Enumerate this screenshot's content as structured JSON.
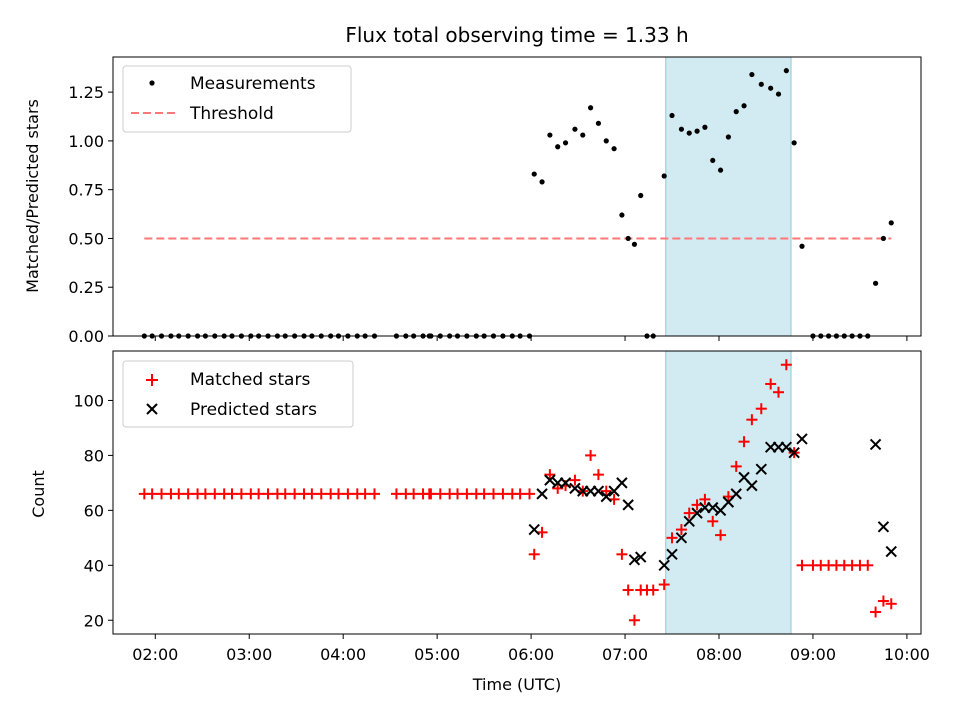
{
  "figure": {
    "title": "Flux total observing time = 1.33 h"
  },
  "chart_data": [
    {
      "type": "scatter",
      "panel": "top",
      "ylabel": "Matched/Predicted stars",
      "ylim": [
        0,
        1.43
      ],
      "yticks": [
        0.0,
        0.25,
        0.5,
        0.75,
        1.0,
        1.25
      ],
      "ytick_labels": [
        "0.00",
        "0.25",
        "0.50",
        "0.75",
        "1.00",
        "1.25"
      ],
      "legend_position": "upper-left",
      "series": [
        {
          "name": "Measurements",
          "marker": "dot",
          "color": "#000000",
          "points": [
            [
              "01:53",
              0
            ],
            [
              "01:58",
              0
            ],
            [
              "02:04",
              0
            ],
            [
              "02:10",
              0
            ],
            [
              "02:15",
              0
            ],
            [
              "02:21",
              0
            ],
            [
              "02:27",
              0
            ],
            [
              "02:32",
              0
            ],
            [
              "02:38",
              0
            ],
            [
              "02:44",
              0
            ],
            [
              "02:49",
              0
            ],
            [
              "02:55",
              0
            ],
            [
              "03:01",
              0
            ],
            [
              "03:06",
              0
            ],
            [
              "03:12",
              0
            ],
            [
              "03:18",
              0
            ],
            [
              "03:23",
              0
            ],
            [
              "03:29",
              0
            ],
            [
              "03:35",
              0
            ],
            [
              "03:40",
              0
            ],
            [
              "03:46",
              0
            ],
            [
              "03:52",
              0
            ],
            [
              "03:57",
              0
            ],
            [
              "04:03",
              0
            ],
            [
              "04:09",
              0
            ],
            [
              "04:14",
              0
            ],
            [
              "04:20",
              0
            ],
            [
              "04:34",
              0
            ],
            [
              "04:40",
              0
            ],
            [
              "04:45",
              0
            ],
            [
              "04:51",
              0
            ],
            [
              "04:55",
              0
            ],
            [
              "04:56",
              0
            ],
            [
              "05:02",
              0
            ],
            [
              "05:08",
              0
            ],
            [
              "05:13",
              0
            ],
            [
              "05:19",
              0
            ],
            [
              "05:25",
              0
            ],
            [
              "05:30",
              0
            ],
            [
              "05:36",
              0
            ],
            [
              "05:42",
              0
            ],
            [
              "05:48",
              0
            ],
            [
              "05:53",
              0
            ],
            [
              "05:59",
              0
            ],
            [
              "06:02",
              0.83
            ],
            [
              "06:07",
              0.79
            ],
            [
              "06:12",
              1.03
            ],
            [
              "06:17",
              0.97
            ],
            [
              "06:22",
              0.99
            ],
            [
              "06:28",
              1.06
            ],
            [
              "06:33",
              1.03
            ],
            [
              "06:38",
              1.17
            ],
            [
              "06:43",
              1.09
            ],
            [
              "06:48",
              1.0
            ],
            [
              "06:53",
              0.96
            ],
            [
              "06:58",
              0.62
            ],
            [
              "07:02",
              0.5
            ],
            [
              "07:06",
              0.47
            ],
            [
              "07:10",
              0.72
            ],
            [
              "07:14",
              0
            ],
            [
              "07:18",
              0
            ],
            [
              "07:25",
              0.82
            ],
            [
              "07:30",
              1.13
            ],
            [
              "07:36",
              1.06
            ],
            [
              "07:41",
              1.04
            ],
            [
              "07:46",
              1.05
            ],
            [
              "07:51",
              1.07
            ],
            [
              "07:56",
              0.9
            ],
            [
              "08:01",
              0.85
            ],
            [
              "08:06",
              1.02
            ],
            [
              "08:11",
              1.15
            ],
            [
              "08:16",
              1.18
            ],
            [
              "08:21",
              1.34
            ],
            [
              "08:27",
              1.29
            ],
            [
              "08:33",
              1.27
            ],
            [
              "08:38",
              1.24
            ],
            [
              "08:43",
              1.36
            ],
            [
              "08:48",
              0.99
            ],
            [
              "08:53",
              0.46
            ],
            [
              "09:00",
              0
            ],
            [
              "09:05",
              0
            ],
            [
              "09:10",
              0
            ],
            [
              "09:15",
              0
            ],
            [
              "09:20",
              0
            ],
            [
              "09:25",
              0
            ],
            [
              "09:30",
              0
            ],
            [
              "09:35",
              0
            ],
            [
              "09:40",
              0.27
            ],
            [
              "09:45",
              0.5
            ],
            [
              "09:50",
              0.58
            ]
          ]
        },
        {
          "name": "Threshold",
          "marker": "dashed-line",
          "color": "#ff7777",
          "points": [
            [
              "01:53",
              0.5
            ],
            [
              "09:50",
              0.5
            ]
          ]
        }
      ]
    },
    {
      "type": "scatter",
      "panel": "bottom",
      "ylabel": "Count",
      "xlabel": "Time (UTC)",
      "ylim": [
        15,
        118
      ],
      "yticks": [
        20,
        40,
        60,
        80,
        100
      ],
      "xlim": [
        "01:33",
        "10:09"
      ],
      "xticks": [
        "02:00",
        "03:00",
        "04:00",
        "05:00",
        "06:00",
        "07:00",
        "08:00",
        "09:00",
        "10:00"
      ],
      "legend_position": "upper-left",
      "series": [
        {
          "name": "Matched stars",
          "marker": "plus",
          "color": "#ff0000",
          "points": [
            [
              "01:53",
              66
            ],
            [
              "01:58",
              66
            ],
            [
              "02:04",
              66
            ],
            [
              "02:10",
              66
            ],
            [
              "02:15",
              66
            ],
            [
              "02:21",
              66
            ],
            [
              "02:27",
              66
            ],
            [
              "02:32",
              66
            ],
            [
              "02:38",
              66
            ],
            [
              "02:44",
              66
            ],
            [
              "02:49",
              66
            ],
            [
              "02:55",
              66
            ],
            [
              "03:01",
              66
            ],
            [
              "03:06",
              66
            ],
            [
              "03:12",
              66
            ],
            [
              "03:18",
              66
            ],
            [
              "03:23",
              66
            ],
            [
              "03:29",
              66
            ],
            [
              "03:35",
              66
            ],
            [
              "03:40",
              66
            ],
            [
              "03:46",
              66
            ],
            [
              "03:52",
              66
            ],
            [
              "03:57",
              66
            ],
            [
              "04:03",
              66
            ],
            [
              "04:09",
              66
            ],
            [
              "04:14",
              66
            ],
            [
              "04:20",
              66
            ],
            [
              "04:34",
              66
            ],
            [
              "04:40",
              66
            ],
            [
              "04:45",
              66
            ],
            [
              "04:51",
              66
            ],
            [
              "04:55",
              66
            ],
            [
              "04:56",
              66
            ],
            [
              "05:02",
              66
            ],
            [
              "05:08",
              66
            ],
            [
              "05:13",
              66
            ],
            [
              "05:19",
              66
            ],
            [
              "05:25",
              66
            ],
            [
              "05:30",
              66
            ],
            [
              "05:36",
              66
            ],
            [
              "05:42",
              66
            ],
            [
              "05:48",
              66
            ],
            [
              "05:53",
              66
            ],
            [
              "05:59",
              66
            ],
            [
              "06:02",
              44
            ],
            [
              "06:07",
              52
            ],
            [
              "06:12",
              73
            ],
            [
              "06:17",
              68
            ],
            [
              "06:22",
              69
            ],
            [
              "06:28",
              71
            ],
            [
              "06:33",
              67
            ],
            [
              "06:38",
              80
            ],
            [
              "06:43",
              73
            ],
            [
              "06:48",
              67
            ],
            [
              "06:53",
              64
            ],
            [
              "06:58",
              44
            ],
            [
              "07:02",
              31
            ],
            [
              "07:06",
              20
            ],
            [
              "07:10",
              31
            ],
            [
              "07:14",
              31
            ],
            [
              "07:18",
              31
            ],
            [
              "07:25",
              33
            ],
            [
              "07:30",
              50
            ],
            [
              "07:36",
              53
            ],
            [
              "07:41",
              59
            ],
            [
              "07:46",
              62
            ],
            [
              "07:51",
              64
            ],
            [
              "07:56",
              56
            ],
            [
              "08:01",
              51
            ],
            [
              "08:06",
              65
            ],
            [
              "08:11",
              76
            ],
            [
              "08:16",
              85
            ],
            [
              "08:21",
              93
            ],
            [
              "08:27",
              97
            ],
            [
              "08:33",
              106
            ],
            [
              "08:38",
              103
            ],
            [
              "08:43",
              113
            ],
            [
              "08:48",
              81
            ],
            [
              "08:53",
              40
            ],
            [
              "09:00",
              40
            ],
            [
              "09:05",
              40
            ],
            [
              "09:10",
              40
            ],
            [
              "09:15",
              40
            ],
            [
              "09:20",
              40
            ],
            [
              "09:25",
              40
            ],
            [
              "09:30",
              40
            ],
            [
              "09:35",
              40
            ],
            [
              "09:40",
              23
            ],
            [
              "09:45",
              27
            ],
            [
              "09:50",
              26
            ]
          ]
        },
        {
          "name": "Predicted stars",
          "marker": "x",
          "color": "#000000",
          "points": [
            [
              "06:02",
              53
            ],
            [
              "06:07",
              66
            ],
            [
              "06:12",
              71
            ],
            [
              "06:17",
              70
            ],
            [
              "06:22",
              70
            ],
            [
              "06:28",
              68
            ],
            [
              "06:33",
              67
            ],
            [
              "06:38",
              67
            ],
            [
              "06:43",
              67
            ],
            [
              "06:48",
              65
            ],
            [
              "06:53",
              67
            ],
            [
              "06:58",
              70
            ],
            [
              "07:02",
              62
            ],
            [
              "07:06",
              42
            ],
            [
              "07:10",
              43
            ],
            [
              "07:25",
              40
            ],
            [
              "07:30",
              44
            ],
            [
              "07:36",
              50
            ],
            [
              "07:41",
              56
            ],
            [
              "07:46",
              59
            ],
            [
              "07:51",
              61
            ],
            [
              "07:56",
              61
            ],
            [
              "08:01",
              60
            ],
            [
              "08:06",
              63
            ],
            [
              "08:11",
              66
            ],
            [
              "08:16",
              72
            ],
            [
              "08:21",
              69
            ],
            [
              "08:27",
              75
            ],
            [
              "08:33",
              83
            ],
            [
              "08:38",
              83
            ],
            [
              "08:43",
              83
            ],
            [
              "08:48",
              81
            ],
            [
              "08:53",
              86
            ],
            [
              "09:40",
              84
            ],
            [
              "09:45",
              54
            ],
            [
              "09:50",
              45
            ]
          ]
        }
      ]
    }
  ],
  "highlight": {
    "start": "07:26",
    "end": "08:46",
    "color": "#add8e6"
  }
}
